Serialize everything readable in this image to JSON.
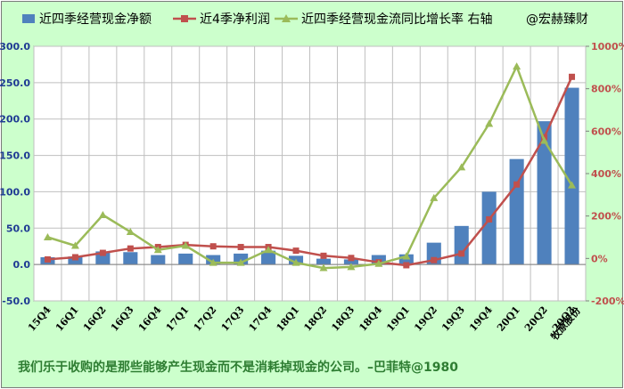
{
  "chart_data": {
    "type": "bar",
    "categories": [
      "15Q4",
      "16Q1",
      "16Q2",
      "16Q3",
      "16Q4",
      "17Q1",
      "17Q2",
      "17Q3",
      "17Q4",
      "18Q1",
      "18Q2",
      "18Q3",
      "18Q4",
      "19Q1",
      "19Q2",
      "19Q3",
      "19Q4",
      "20Q1",
      "20Q2",
      "20Q3"
    ],
    "series": [
      {
        "name": "近四季经营现金净额",
        "kind": "bar",
        "axis": "left",
        "color": "#4f81bd",
        "values": [
          10,
          11,
          18,
          17,
          13,
          15,
          13,
          15,
          19,
          12,
          8,
          7,
          13,
          14,
          30,
          53,
          100,
          145,
          197,
          243
        ]
      },
      {
        "name": "近4季净利润",
        "kind": "line",
        "axis": "left",
        "color": "#c0504d",
        "values": [
          7,
          10,
          16,
          22,
          24,
          27,
          25,
          24,
          24,
          19,
          12,
          9,
          3,
          -1,
          6,
          15,
          62,
          110,
          175,
          258
        ]
      },
      {
        "name": "近四季经营现金流同比增长率 右轴",
        "kind": "line",
        "axis": "right",
        "color": "#9bbb59",
        "values": [
          100,
          60,
          205,
          125,
          40,
          60,
          -20,
          -20,
          40,
          -20,
          -45,
          -40,
          -25,
          10,
          285,
          430,
          635,
          905,
          555,
          345
        ]
      }
    ],
    "ylim": [
      -50,
      300
    ],
    "y_ticks": [
      "300.0",
      "250.0",
      "200.0",
      "150.0",
      "100.0",
      "50.0",
      "0.0",
      "-50.0"
    ],
    "y2lim": [
      -200,
      1000
    ],
    "y2_ticks": [
      "1000%",
      "800%",
      "600%",
      "400%",
      "200%",
      "0%",
      "-200%"
    ],
    "x_suffix_label": "牧原股份",
    "legend_position": "top",
    "grid": true
  },
  "legend": {
    "bar_label": "近四季经营现金净额",
    "profit_label": "近4季净利润",
    "growth_label": "近四季经营现金流同比增长率 右轴",
    "credit": "@宏赫臻财"
  },
  "footer": {
    "quote": "我们乐于收购的是那些能够产生现金而不是消耗掉现金的公司。–巴菲特@1980"
  },
  "colors": {
    "background": "#ccffcc",
    "bar": "#4f81bd",
    "profit_line": "#c0504d",
    "growth_line": "#9bbb59",
    "left_axis_text": "#1f3a93",
    "right_axis_text": "#c0504d",
    "footer_text": "#2e7d32"
  }
}
